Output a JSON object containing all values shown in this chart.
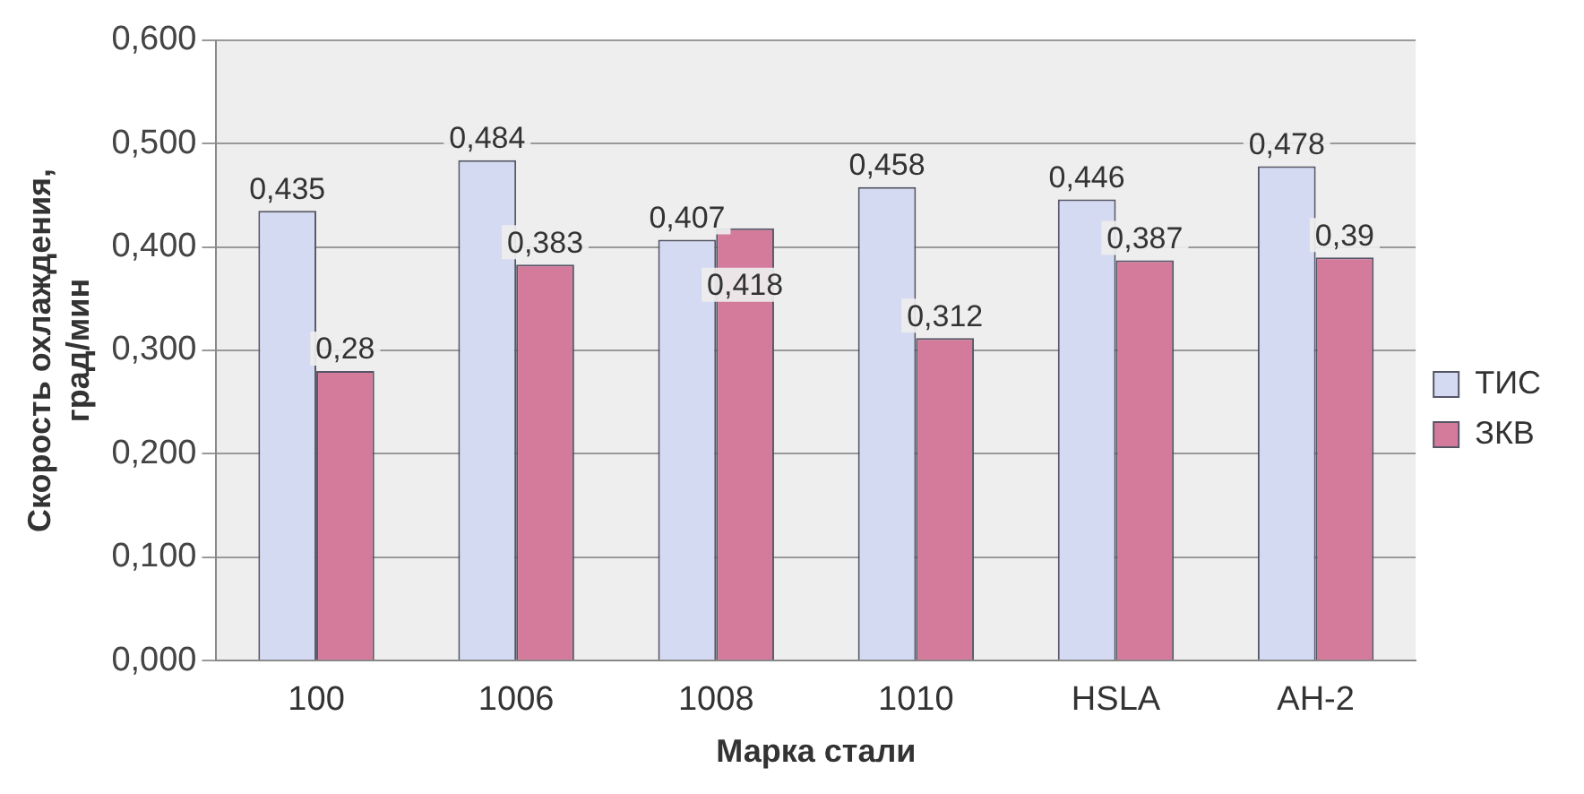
{
  "chart_data": {
    "type": "bar",
    "xlabel": "Марка стали",
    "ylabel": "Скорость охлаждения,\nград/мин",
    "categories": [
      "100",
      "1006",
      "1008",
      "1010",
      "HSLA",
      "АН-2"
    ],
    "series": [
      {
        "name": "ТИС",
        "color": "#d3daf2",
        "values": [
          0.435,
          0.484,
          0.407,
          0.458,
          0.446,
          0.478
        ],
        "value_labels": [
          "0,435",
          "0,484",
          "0,407",
          "0,458",
          "0,446",
          "0,478"
        ]
      },
      {
        "name": "ЗКВ",
        "color": "#d47b9c",
        "values": [
          0.28,
          0.383,
          0.418,
          0.312,
          0.387,
          0.39
        ],
        "value_labels": [
          "0,28",
          "0,383",
          "0,418",
          "0,312",
          "0,387",
          "0,39"
        ]
      }
    ],
    "ylim": [
      0,
      0.6
    ],
    "yticks": [
      {
        "value": 0,
        "label": "0,000"
      },
      {
        "value": 0.1,
        "label": "0,100"
      },
      {
        "value": 0.2,
        "label": "0,200"
      },
      {
        "value": 0.3,
        "label": "0,300"
      },
      {
        "value": 0.4,
        "label": "0,400"
      },
      {
        "value": 0.5,
        "label": "0,500"
      },
      {
        "value": 0.6,
        "label": "0,600"
      }
    ],
    "grid": "y",
    "legend": "right"
  }
}
